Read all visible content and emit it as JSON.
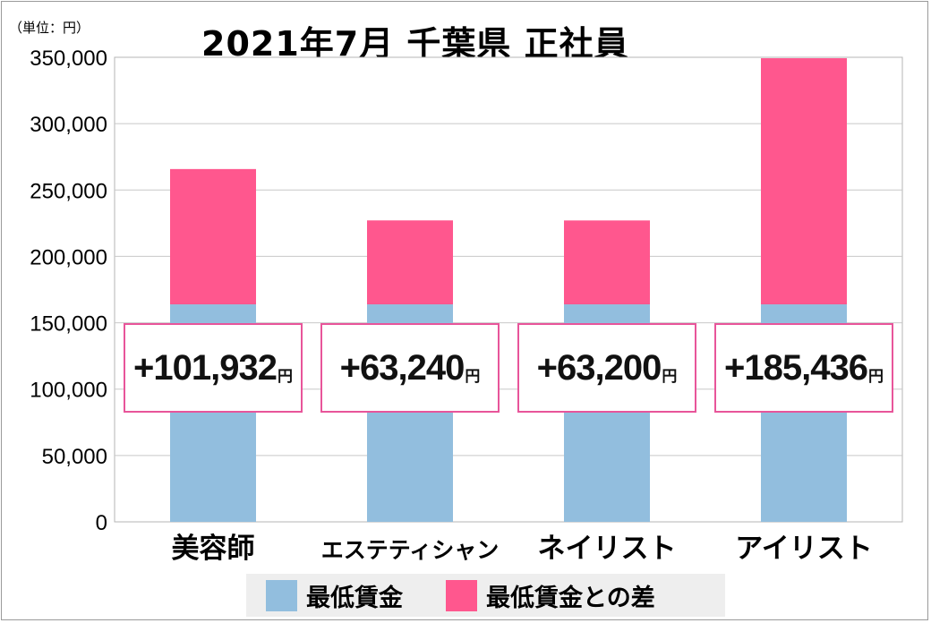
{
  "unit_label": "（単位：円）",
  "title": "2021年7月 千葉県 正社員",
  "colors": {
    "base": "#92bede",
    "diff": "#ff578e",
    "box_border": "#e8559a"
  },
  "chart_data": {
    "type": "bar",
    "stacked": true,
    "categories": [
      "美容師",
      "エステティシャン",
      "ネイリスト",
      "アイリスト"
    ],
    "series": [
      {
        "name": "最低賃金",
        "values": [
          163866,
          163866,
          163866,
          163866
        ]
      },
      {
        "name": "最低賃金との差",
        "values": [
          101932,
          63240,
          63200,
          185436
        ]
      }
    ],
    "annotations": [
      "+101,932",
      "+63,240",
      "+63,200",
      "+185,436"
    ],
    "annotation_unit": "円",
    "ylim": [
      0,
      350000
    ],
    "yticks": [
      "0",
      "50,000",
      "100,000",
      "150,000",
      "200,000",
      "250,000",
      "300,000",
      "350,000"
    ],
    "grid": true,
    "legend": "bottom"
  }
}
